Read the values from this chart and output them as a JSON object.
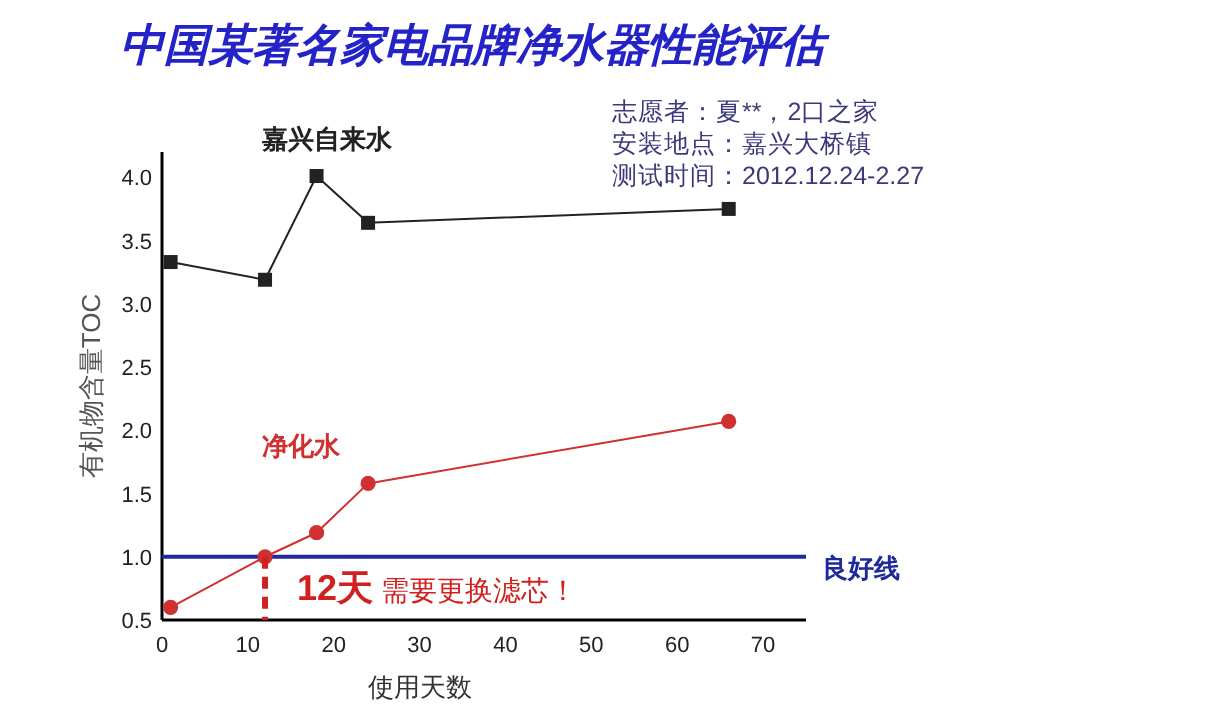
{
  "chart_data": {
    "type": "line",
    "title": "中国某著名家电品牌净水器性能评估",
    "xlabel": "使用天数",
    "ylabel": "有机物含量TOC",
    "annotations": [
      "志愿者：夏**，2口之家",
      "安装地点：嘉兴大桥镇",
      "测试时间：2012.12.24-2.27",
      {
        "text": "12天 需要更换滤芯！",
        "x": 12,
        "y": 1.0
      }
    ],
    "series": [
      {
        "name": "嘉兴自来水",
        "color": "#222222",
        "marker": "square",
        "x": [
          1,
          12,
          18,
          24,
          66
        ],
        "values": [
          3.33,
          3.19,
          4.01,
          3.64,
          3.75
        ]
      },
      {
        "name": "净化水",
        "color": "#d03030",
        "marker": "circle",
        "x": [
          1,
          12,
          18,
          24,
          66
        ],
        "values": [
          0.6,
          1.0,
          1.19,
          1.58,
          2.07
        ]
      }
    ],
    "ref_lines": [
      {
        "axis": "y",
        "value": 1,
        "label": "良好线",
        "color": "#1f2a9a"
      }
    ],
    "xlim": [
      0,
      75
    ],
    "xticks": [
      0,
      10,
      20,
      30,
      40,
      50,
      60,
      70
    ],
    "ylim": [
      0.5,
      4.2
    ],
    "yticks": [
      {
        "value": 0.5,
        "label": "0.5"
      },
      {
        "value": 1,
        "label": "1.0"
      },
      {
        "value": 1.5,
        "label": "1.5"
      },
      {
        "value": 2,
        "label": "2.0"
      },
      {
        "value": 2.5,
        "label": "2.5"
      },
      {
        "value": 3,
        "label": "3.0"
      },
      {
        "value": 3.5,
        "label": "3.5"
      },
      {
        "value": 4,
        "label": "4.0"
      }
    ],
    "grid": false
  }
}
